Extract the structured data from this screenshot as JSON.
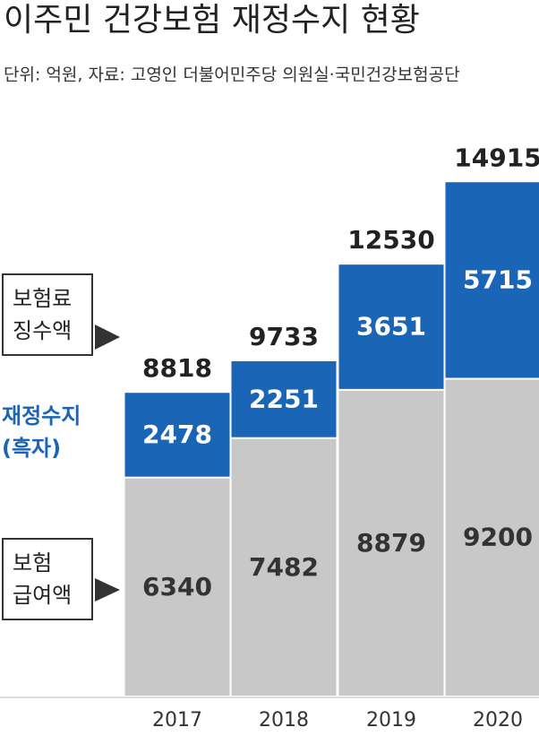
{
  "chart_data": {
    "type": "stacked_bar",
    "title": "이주민 건강보험 재정수지 현황",
    "subtitle": "단위: 억원, 자료: 고영인 더불어민주당 의원실·국민건강보험공단",
    "categories": [
      "2017",
      "2018",
      "2019",
      "2020"
    ],
    "series": [
      {
        "name": "보험\n급여액",
        "color": "#c8c8c8",
        "values": [
          6340,
          7482,
          8879,
          9200
        ]
      },
      {
        "name": "재정수지\n(흑자)",
        "color": "#1a65b5",
        "values": [
          2478,
          2251,
          3651,
          5715
        ]
      }
    ],
    "totals_label": "보험료\n징수액",
    "totals": [
      8818,
      9733,
      12530,
      14915
    ],
    "ylim": [
      0,
      15000
    ]
  }
}
